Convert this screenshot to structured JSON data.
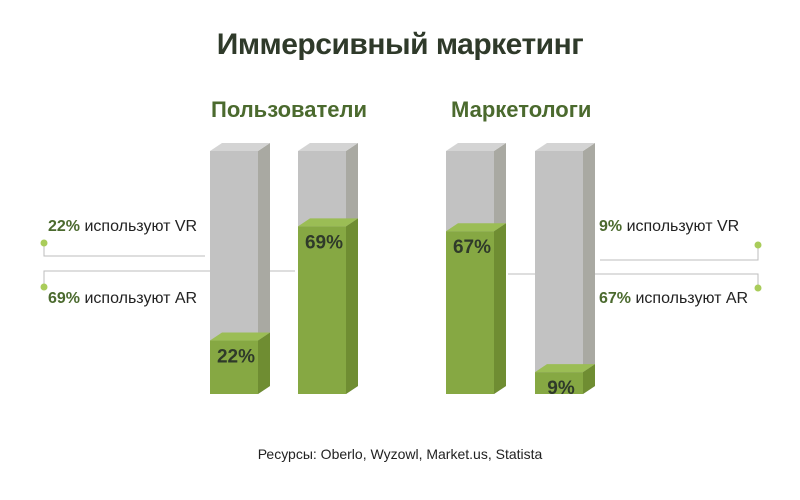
{
  "title": "Иммерсивный маркетинг",
  "source": "Ресурсы: Oberlo, Wyzowl, Market.us, Statista",
  "colors": {
    "green": "#86a843",
    "green_side": "#6f8d32",
    "gray": "#c2c2c2",
    "gray_side": "#a9a9a2",
    "accent_text": "#4b6a2e",
    "dot": "#a9cc5a",
    "line": "#bdbdbd"
  },
  "chart_data": {
    "type": "bar",
    "title": "Иммерсивный маркетинг",
    "ylim": [
      0,
      100
    ],
    "groups": [
      {
        "name": "Пользователи",
        "bars": [
          {
            "label": "VR",
            "value": 22,
            "value_label": "22%"
          },
          {
            "label": "AR",
            "value": 69,
            "value_label": "69%"
          }
        ]
      },
      {
        "name": "Маркетологи",
        "bars": [
          {
            "label": "AR",
            "value": 67,
            "value_label": "67%"
          },
          {
            "label": "VR",
            "value": 9,
            "value_label": "9%"
          }
        ]
      }
    ]
  },
  "callouts": {
    "left": [
      {
        "pct": "22%",
        "text": " используют VR"
      },
      {
        "pct": "69%",
        "text": " используют AR"
      }
    ],
    "right": [
      {
        "pct": "9%",
        "text": " используют VR"
      },
      {
        "pct": "67%",
        "text": " используют AR"
      }
    ]
  }
}
